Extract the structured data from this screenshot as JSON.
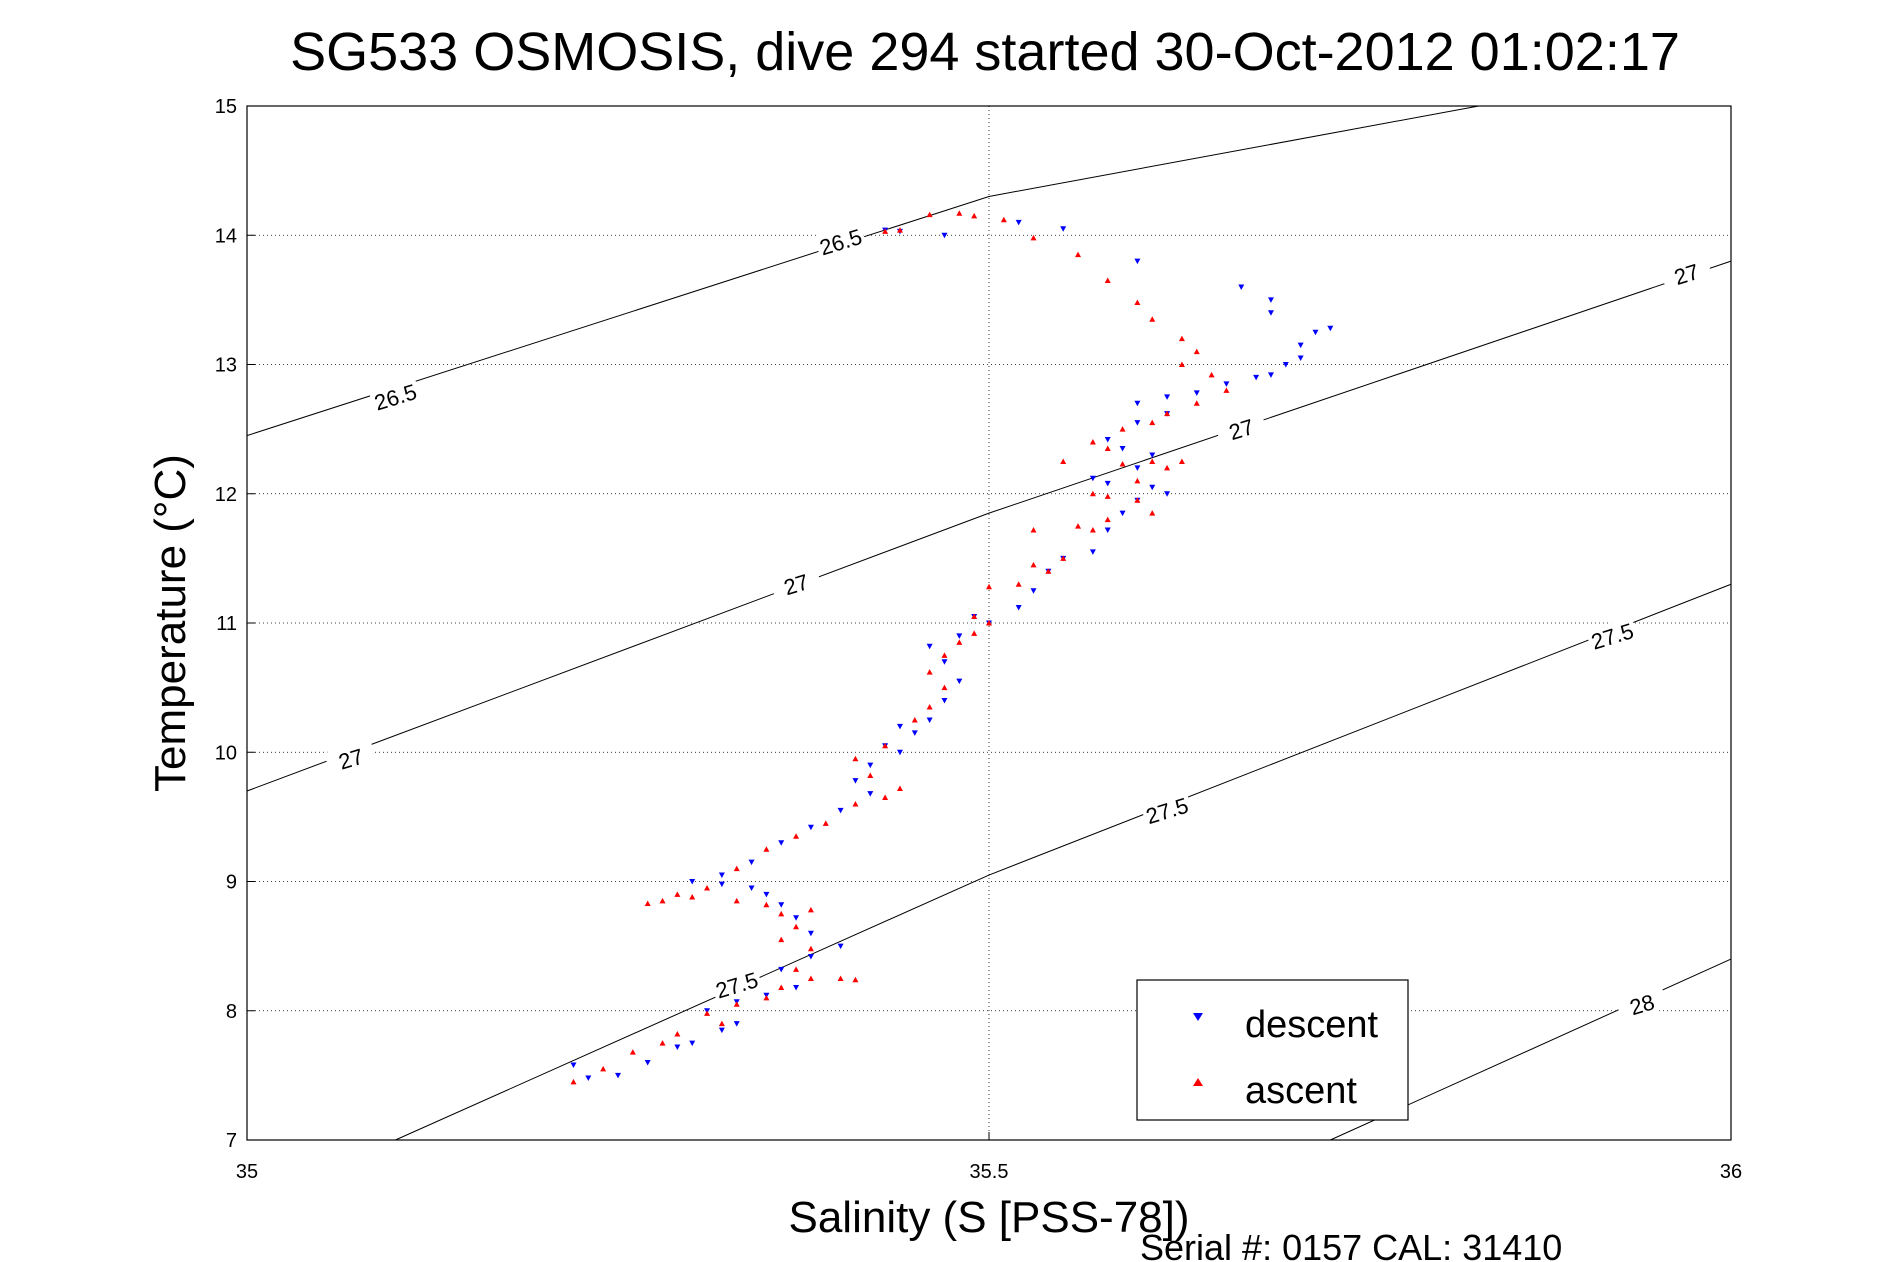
{
  "chart_data": {
    "type": "scatter",
    "title": "SG533 OSMOSIS, dive 294 started 30-Oct-2012 01:02:17",
    "xlabel": "Salinity (S [PSS-78])",
    "ylabel": "Temperature (°C)",
    "xlim": [
      35,
      36
    ],
    "ylim": [
      7,
      15
    ],
    "x_ticks": [
      35,
      35.5,
      36
    ],
    "x_tick_labels": [
      "35",
      "35.5",
      "36"
    ],
    "y_ticks": [
      7,
      8,
      9,
      10,
      11,
      12,
      13,
      14,
      15
    ],
    "y_tick_labels": [
      "7",
      "8",
      "9",
      "10",
      "11",
      "12",
      "13",
      "14",
      "15"
    ],
    "grid": true,
    "legend_position": "bottom-right",
    "density_contours": [
      {
        "label": "26.5",
        "points": [
          [
            35.0,
            12.45
          ],
          [
            35.5,
            14.3
          ],
          [
            35.83,
            15.0
          ]
        ],
        "label_positions": [
          [
            35.1,
            12.75
          ],
          [
            35.4,
            13.95
          ]
        ]
      },
      {
        "label": "27",
        "points": [
          [
            35.0,
            9.7
          ],
          [
            35.5,
            11.85
          ],
          [
            36.0,
            13.8
          ]
        ],
        "label_positions": [
          [
            35.07,
            9.95
          ],
          [
            35.37,
            11.3
          ],
          [
            35.67,
            12.5
          ],
          [
            35.97,
            13.7
          ]
        ]
      },
      {
        "label": "27.5",
        "points": [
          [
            35.1,
            7.0
          ],
          [
            35.5,
            9.05
          ],
          [
            36.0,
            11.3
          ]
        ],
        "label_positions": [
          [
            35.33,
            8.2
          ],
          [
            35.62,
            9.55
          ],
          [
            35.92,
            10.9
          ]
        ]
      },
      {
        "label": "28",
        "points": [
          [
            35.73,
            7.0
          ],
          [
            36.0,
            8.4
          ]
        ],
        "label_positions": [
          [
            35.94,
            8.05
          ]
        ]
      }
    ],
    "series": [
      {
        "name": "descent",
        "color": "#0000ff",
        "marker": "triangle-down",
        "points": [
          [
            35.23,
            7.48
          ],
          [
            35.22,
            7.58
          ],
          [
            35.25,
            7.5
          ],
          [
            35.27,
            7.6
          ],
          [
            35.29,
            7.72
          ],
          [
            35.3,
            7.75
          ],
          [
            35.32,
            7.85
          ],
          [
            35.33,
            7.9
          ],
          [
            35.31,
            8.0
          ],
          [
            35.33,
            8.07
          ],
          [
            35.35,
            8.12
          ],
          [
            35.37,
            8.18
          ],
          [
            35.36,
            8.32
          ],
          [
            35.38,
            8.42
          ],
          [
            35.4,
            8.5
          ],
          [
            35.38,
            8.6
          ],
          [
            35.37,
            8.72
          ],
          [
            35.36,
            8.82
          ],
          [
            35.35,
            8.9
          ],
          [
            35.34,
            8.95
          ],
          [
            35.32,
            8.98
          ],
          [
            35.3,
            9.0
          ],
          [
            35.32,
            9.05
          ],
          [
            35.34,
            9.15
          ],
          [
            35.36,
            9.3
          ],
          [
            35.38,
            9.42
          ],
          [
            35.4,
            9.55
          ],
          [
            35.42,
            9.68
          ],
          [
            35.41,
            9.78
          ],
          [
            35.42,
            9.9
          ],
          [
            35.44,
            10.0
          ],
          [
            35.43,
            10.05
          ],
          [
            35.45,
            10.15
          ],
          [
            35.44,
            10.2
          ],
          [
            35.46,
            10.25
          ],
          [
            35.47,
            10.4
          ],
          [
            35.48,
            10.55
          ],
          [
            35.47,
            10.7
          ],
          [
            35.46,
            10.82
          ],
          [
            35.48,
            10.9
          ],
          [
            35.5,
            11.0
          ],
          [
            35.49,
            11.05
          ],
          [
            35.52,
            11.12
          ],
          [
            35.53,
            11.25
          ],
          [
            35.54,
            11.4
          ],
          [
            35.55,
            11.5
          ],
          [
            35.57,
            11.55
          ],
          [
            35.58,
            11.72
          ],
          [
            35.59,
            11.85
          ],
          [
            35.6,
            11.95
          ],
          [
            35.62,
            12.0
          ],
          [
            35.61,
            12.05
          ],
          [
            35.58,
            12.08
          ],
          [
            35.57,
            12.12
          ],
          [
            35.6,
            12.2
          ],
          [
            35.61,
            12.3
          ],
          [
            35.59,
            12.35
          ],
          [
            35.58,
            12.42
          ],
          [
            35.6,
            12.55
          ],
          [
            35.62,
            12.62
          ],
          [
            35.6,
            12.7
          ],
          [
            35.62,
            12.75
          ],
          [
            35.64,
            12.78
          ],
          [
            35.66,
            12.85
          ],
          [
            35.68,
            12.9
          ],
          [
            35.69,
            12.92
          ],
          [
            35.7,
            13.0
          ],
          [
            35.71,
            13.05
          ],
          [
            35.71,
            13.15
          ],
          [
            35.72,
            13.25
          ],
          [
            35.73,
            13.28
          ],
          [
            35.69,
            13.4
          ],
          [
            35.69,
            13.5
          ],
          [
            35.67,
            13.6
          ],
          [
            35.6,
            13.8
          ],
          [
            35.55,
            14.05
          ],
          [
            35.52,
            14.1
          ],
          [
            35.47,
            14.0
          ],
          [
            35.44,
            14.03
          ],
          [
            35.43,
            14.04
          ]
        ]
      },
      {
        "name": "ascent",
        "color": "#ff0000",
        "marker": "triangle-up",
        "points": [
          [
            35.22,
            7.45
          ],
          [
            35.24,
            7.55
          ],
          [
            35.26,
            7.68
          ],
          [
            35.28,
            7.75
          ],
          [
            35.29,
            7.82
          ],
          [
            35.32,
            7.9
          ],
          [
            35.31,
            7.98
          ],
          [
            35.33,
            8.05
          ],
          [
            35.35,
            8.1
          ],
          [
            35.36,
            8.18
          ],
          [
            35.38,
            8.25
          ],
          [
            35.4,
            8.25
          ],
          [
            35.41,
            8.24
          ],
          [
            35.37,
            8.32
          ],
          [
            35.38,
            8.48
          ],
          [
            35.36,
            8.55
          ],
          [
            35.37,
            8.65
          ],
          [
            35.36,
            8.75
          ],
          [
            35.38,
            8.78
          ],
          [
            35.35,
            8.82
          ],
          [
            35.33,
            8.85
          ],
          [
            35.3,
            8.88
          ],
          [
            35.28,
            8.85
          ],
          [
            35.27,
            8.83
          ],
          [
            35.29,
            8.9
          ],
          [
            35.31,
            8.95
          ],
          [
            35.33,
            9.1
          ],
          [
            35.35,
            9.25
          ],
          [
            35.37,
            9.35
          ],
          [
            35.39,
            9.45
          ],
          [
            35.41,
            9.6
          ],
          [
            35.43,
            9.65
          ],
          [
            35.44,
            9.72
          ],
          [
            35.42,
            9.82
          ],
          [
            35.41,
            9.95
          ],
          [
            35.43,
            10.05
          ],
          [
            35.45,
            10.25
          ],
          [
            35.46,
            10.35
          ],
          [
            35.47,
            10.5
          ],
          [
            35.46,
            10.62
          ],
          [
            35.47,
            10.75
          ],
          [
            35.48,
            10.85
          ],
          [
            35.49,
            10.92
          ],
          [
            35.5,
            11.0
          ],
          [
            35.49,
            11.05
          ],
          [
            35.5,
            11.28
          ],
          [
            35.52,
            11.3
          ],
          [
            35.54,
            11.4
          ],
          [
            35.53,
            11.45
          ],
          [
            35.55,
            11.5
          ],
          [
            35.53,
            11.72
          ],
          [
            35.56,
            11.75
          ],
          [
            35.57,
            11.72
          ],
          [
            35.58,
            11.8
          ],
          [
            35.61,
            11.85
          ],
          [
            35.6,
            11.95
          ],
          [
            35.58,
            11.98
          ],
          [
            35.57,
            12.0
          ],
          [
            35.6,
            12.1
          ],
          [
            35.62,
            12.2
          ],
          [
            35.63,
            12.25
          ],
          [
            35.61,
            12.25
          ],
          [
            35.59,
            12.23
          ],
          [
            35.58,
            12.35
          ],
          [
            35.55,
            12.25
          ],
          [
            35.57,
            12.4
          ],
          [
            35.59,
            12.5
          ],
          [
            35.61,
            12.55
          ],
          [
            35.62,
            12.62
          ],
          [
            35.64,
            12.7
          ],
          [
            35.66,
            12.8
          ],
          [
            35.65,
            12.92
          ],
          [
            35.63,
            13.0
          ],
          [
            35.64,
            13.1
          ],
          [
            35.63,
            13.2
          ],
          [
            35.61,
            13.35
          ],
          [
            35.6,
            13.48
          ],
          [
            35.58,
            13.65
          ],
          [
            35.56,
            13.85
          ],
          [
            35.53,
            13.98
          ],
          [
            35.51,
            14.12
          ],
          [
            35.49,
            14.15
          ],
          [
            35.48,
            14.17
          ],
          [
            35.46,
            14.16
          ],
          [
            35.44,
            14.04
          ],
          [
            35.43,
            14.03
          ]
        ]
      }
    ]
  },
  "footer": {
    "serial": "Serial #: 0157  CAL: 31410"
  }
}
